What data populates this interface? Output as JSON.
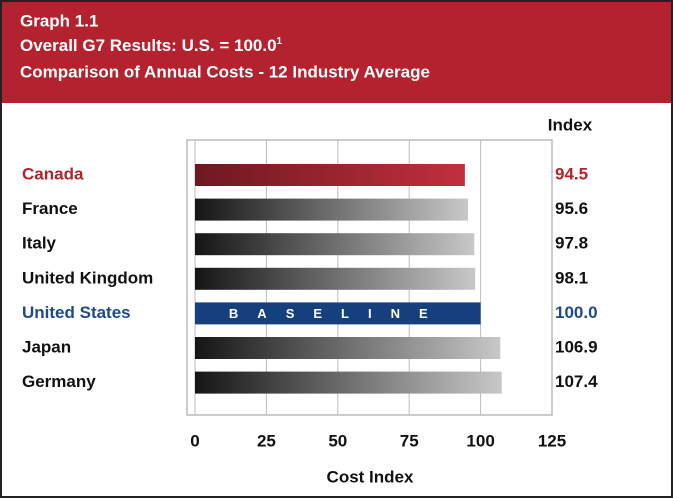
{
  "chart_data": {
    "type": "barh",
    "title": "Graph 1.1",
    "subtitle": "Overall G7 Results: U.S. = 100.0",
    "subtitle_note": "1",
    "subtitle2": "Comparison of Annual Costs - 12 Industry Average",
    "value_header": "Index",
    "x_label": "Cost Index",
    "annotation": "BASELINE",
    "categories": [
      "Canada",
      "France",
      "Italy",
      "United Kingdom",
      "United States",
      "Japan",
      "Germany"
    ],
    "values": [
      94.5,
      95.6,
      97.8,
      98.1,
      100.0,
      106.9,
      107.4
    ],
    "value_labels": [
      "94.5",
      "95.6",
      "97.8",
      "98.1",
      "100.0",
      "106.9",
      "107.4"
    ],
    "label_colors": [
      "#b3222e",
      "#111111",
      "#111111",
      "#111111",
      "#1c4a8c",
      "#111111",
      "#111111"
    ],
    "bar_colors": [
      [
        "#6e1820",
        "#c1303c"
      ],
      [
        "#151515",
        "#c8c8c8"
      ],
      [
        "#151515",
        "#c8c8c8"
      ],
      [
        "#151515",
        "#c8c8c8"
      ],
      [
        "#163f7e",
        "#163f7e"
      ],
      [
        "#151515",
        "#c8c8c8"
      ],
      [
        "#151515",
        "#c8c8c8"
      ]
    ],
    "xlim": [
      0,
      125
    ],
    "xticks": [
      0,
      25,
      50,
      75,
      100,
      125
    ],
    "grid": true,
    "header_color": "#b3222e"
  }
}
